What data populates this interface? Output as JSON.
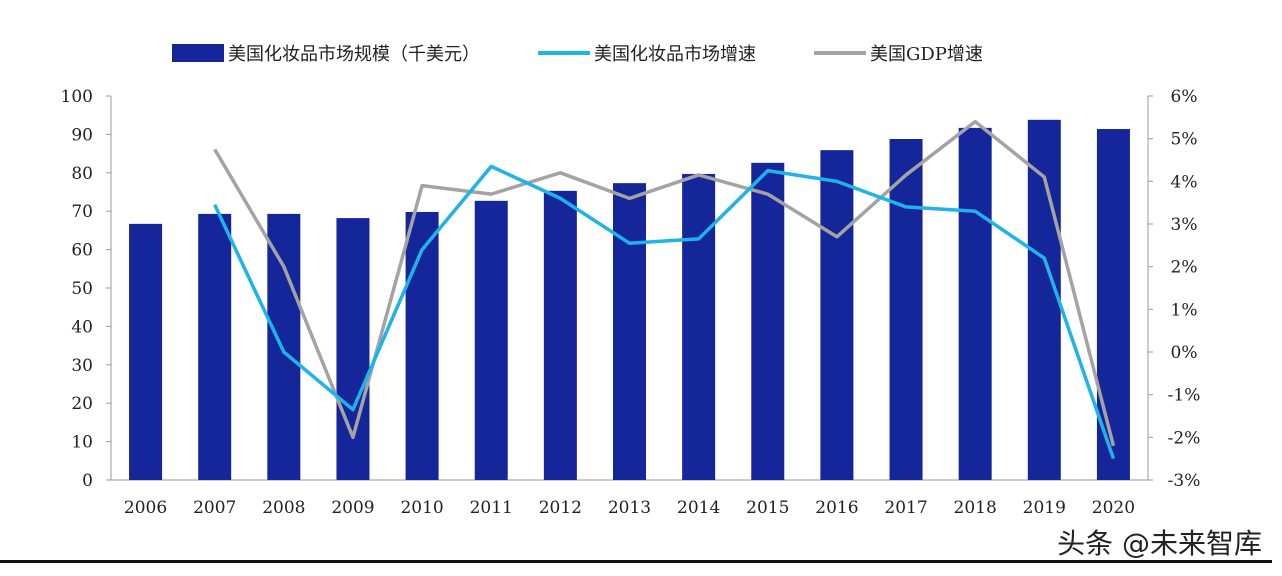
{
  "chart_data": {
    "type": "bar+line",
    "categories": [
      "2006",
      "2007",
      "2008",
      "2009",
      "2010",
      "2011",
      "2012",
      "2013",
      "2014",
      "2015",
      "2016",
      "2017",
      "2018",
      "2019",
      "2020"
    ],
    "series": [
      {
        "name": "美国化妆品市场规模（千美元）",
        "type": "bar",
        "axis": "left",
        "color": "#15259a",
        "values": [
          66.7,
          69.3,
          69.3,
          68.2,
          69.8,
          72.7,
          75.3,
          77.3,
          79.7,
          82.6,
          85.9,
          88.8,
          91.7,
          93.8,
          91.4
        ]
      },
      {
        "name": "美国化妆品市场增速",
        "type": "line",
        "axis": "right",
        "color": "#1fb3e8",
        "values": [
          null,
          3.45,
          0.0,
          -1.35,
          2.4,
          4.35,
          3.6,
          2.55,
          2.65,
          4.25,
          4.0,
          3.4,
          3.3,
          2.2,
          -2.5
        ]
      },
      {
        "name": "美国GDP增速",
        "type": "line",
        "axis": "right",
        "color": "#a3a3a3",
        "values": [
          null,
          4.75,
          2.0,
          -2.0,
          3.9,
          3.7,
          4.2,
          3.6,
          4.15,
          3.7,
          2.7,
          4.15,
          5.4,
          4.1,
          -2.2
        ]
      }
    ],
    "left_axis": {
      "ylim": [
        0,
        100
      ],
      "ticks": [
        "0",
        "10",
        "20",
        "30",
        "40",
        "50",
        "60",
        "70",
        "80",
        "90",
        "100"
      ]
    },
    "right_axis": {
      "ylim": [
        -3,
        6
      ],
      "ticks": [
        "-3%",
        "-2%",
        "-1%",
        "0%",
        "1%",
        "2%",
        "3%",
        "4%",
        "5%",
        "6%"
      ]
    },
    "legend": "top"
  },
  "watermark": "头条 @未来智库"
}
